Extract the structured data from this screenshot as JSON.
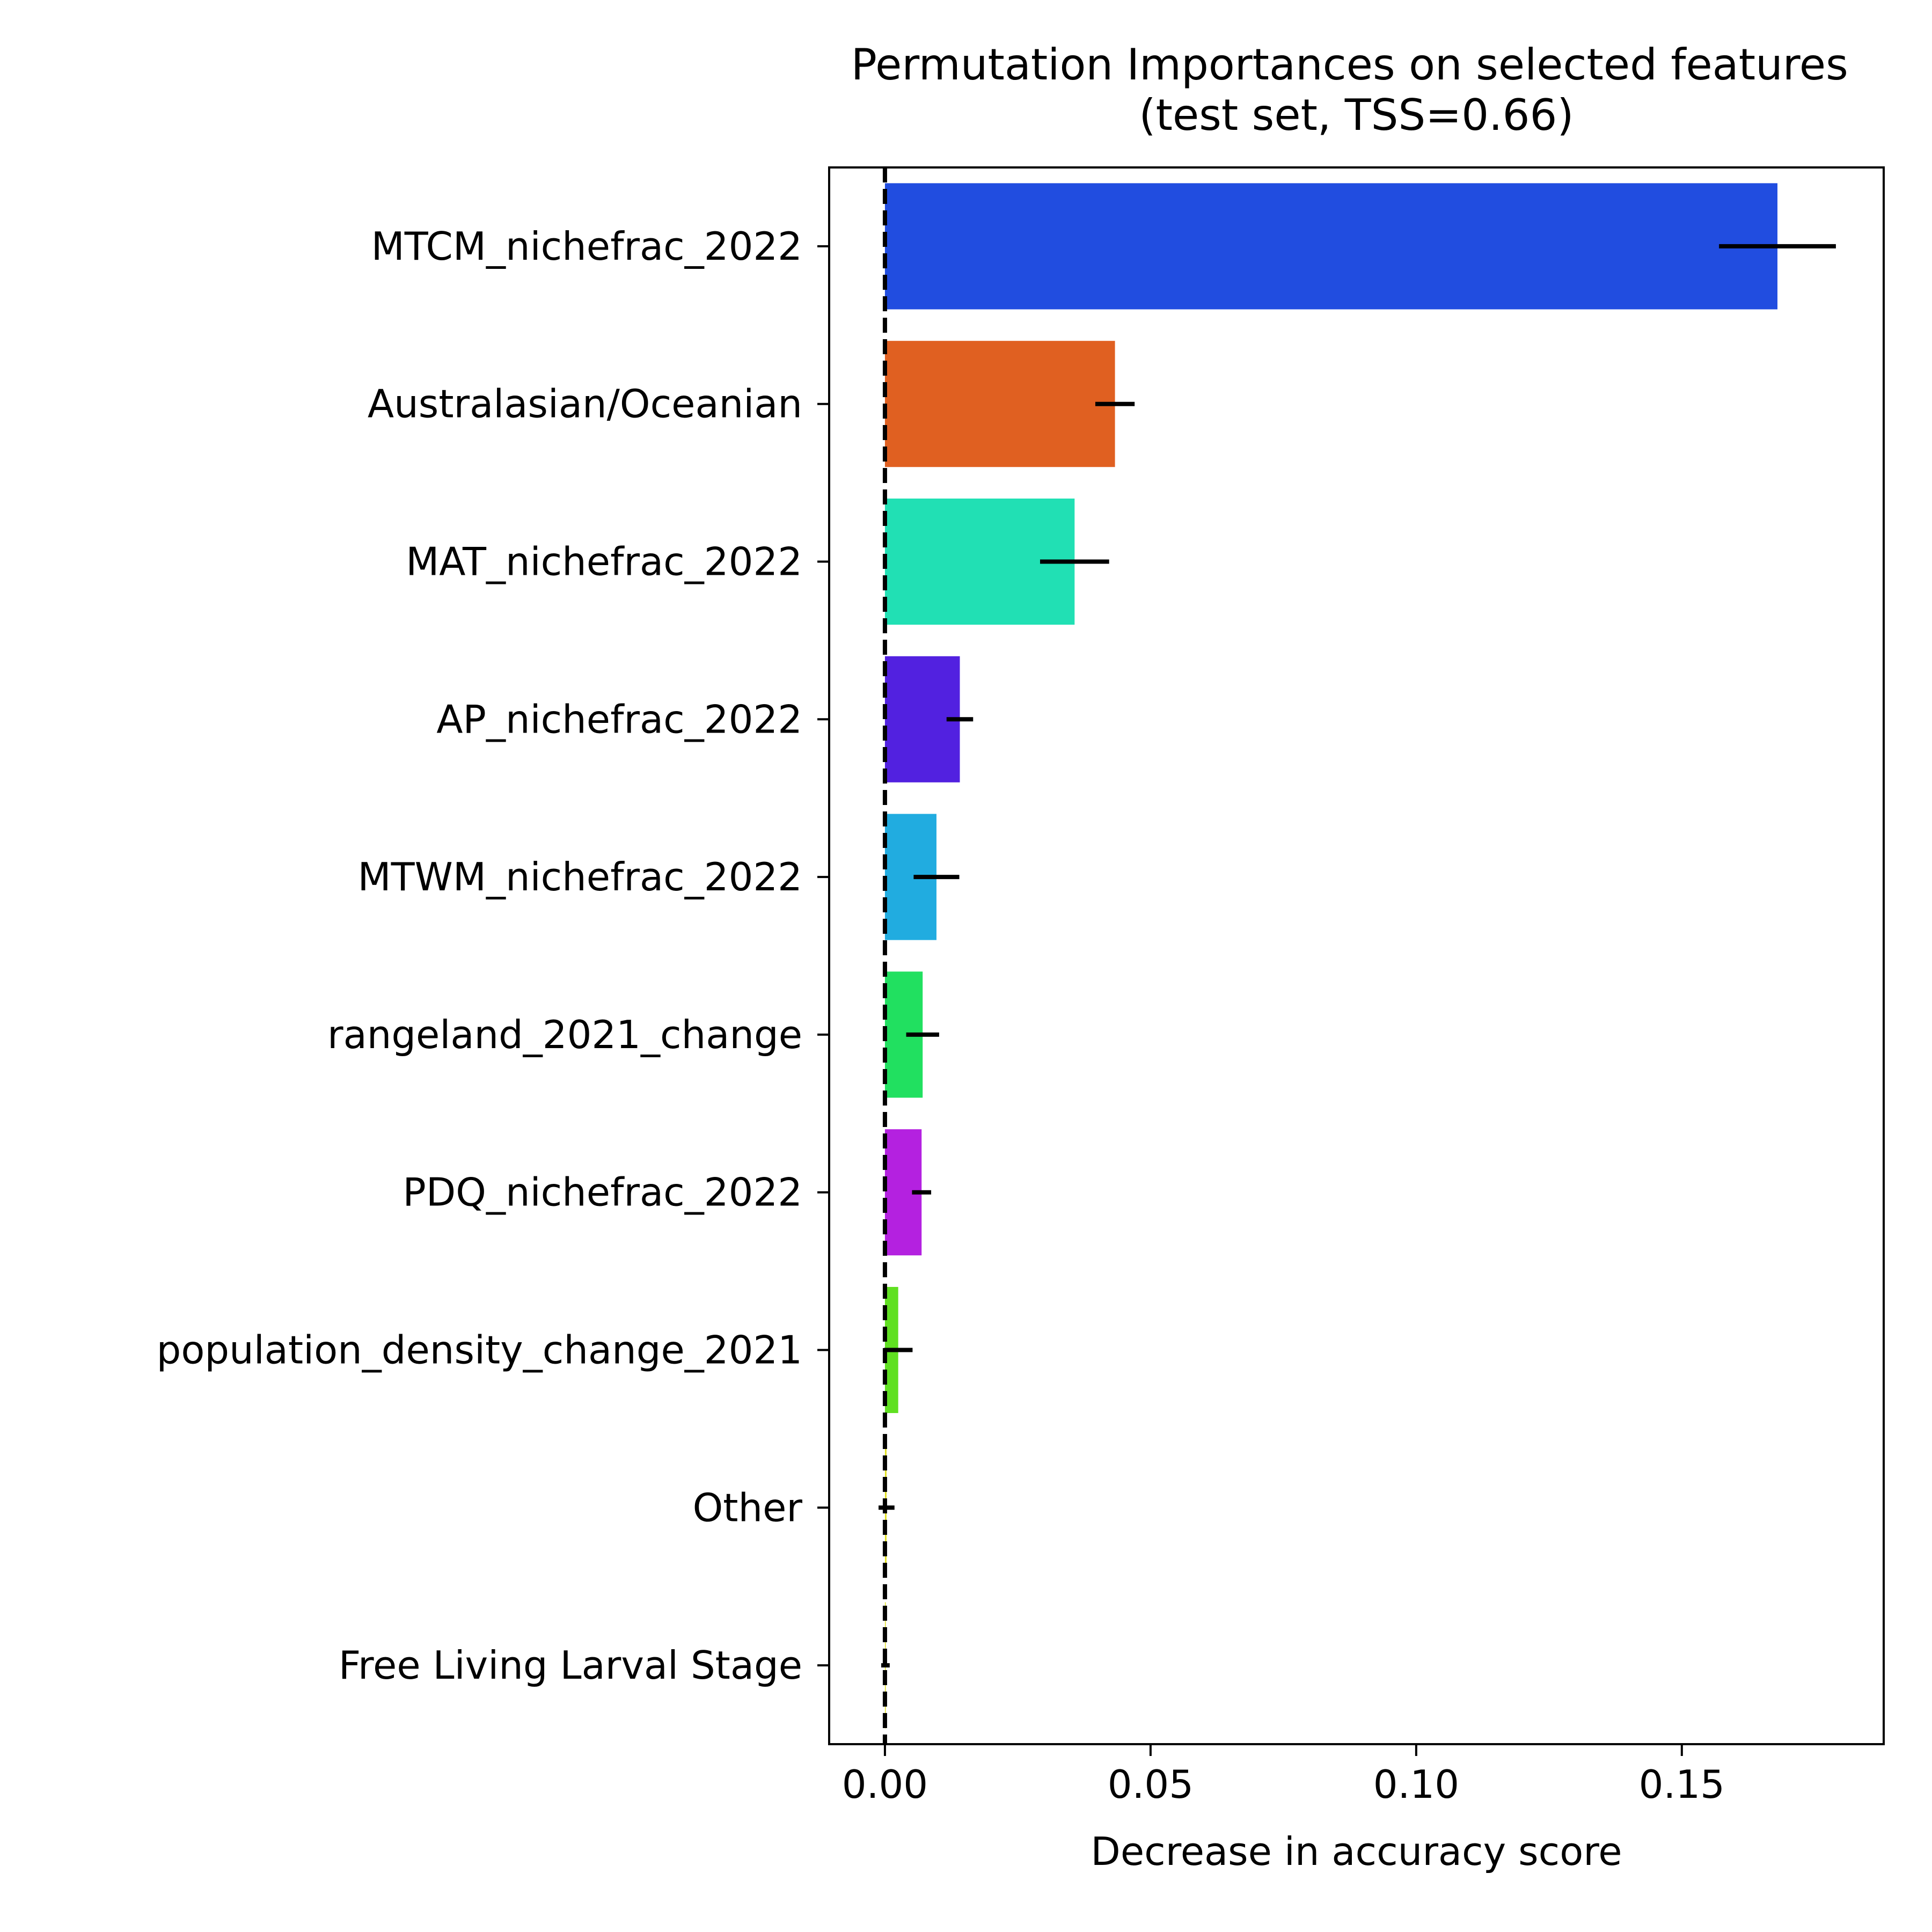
{
  "chart_data": {
    "type": "bar",
    "orientation": "horizontal",
    "title": "Permutation Importances on selected features\n(test set, TSS=0.66)",
    "title_lines": [
      "Permutation Importances on selected features",
      "(test set, TSS=0.66)"
    ],
    "xlabel": "Decrease in accuracy score",
    "ylabel": "",
    "xlim": [
      -0.0105,
      0.188
    ],
    "xticks": [
      0.0,
      0.05,
      0.1,
      0.15
    ],
    "xtick_labels": [
      "0.00",
      "0.05",
      "0.10",
      "0.15"
    ],
    "categories": [
      "MTCM_nichefrac_2022",
      "Australasian/Oceanian",
      "MAT_nichefrac_2022",
      "AP_nichefrac_2022",
      "MTWM_nichefrac_2022",
      "rangeland_2021_change",
      "PDQ_nichefrac_2022",
      "population_density_change_2021",
      "Other",
      "Free Living Larval Stage"
    ],
    "values": [
      0.168,
      0.0433,
      0.0357,
      0.0141,
      0.0097,
      0.0071,
      0.0069,
      0.0025,
      0.0003,
      0.0001
    ],
    "error_center": [
      0.168,
      0.0433,
      0.0357,
      0.0141,
      0.0097,
      0.0071,
      0.0069,
      0.0025,
      0.0003,
      0.0001
    ],
    "errors": [
      0.011,
      0.0037,
      0.0065,
      0.0025,
      0.0043,
      0.0031,
      0.0018,
      0.0027,
      0.0015,
      0.0008
    ],
    "colors": [
      "#214de0",
      "#e06021",
      "#21e0b4",
      "#5221e0",
      "#21ace0",
      "#21e060",
      "#b421e0",
      "#60e021",
      "#e0e021",
      "#e0e021"
    ],
    "reference_line": {
      "x": 0,
      "style": "dashed",
      "color": "#000000"
    },
    "grid": false,
    "legend": "none"
  }
}
